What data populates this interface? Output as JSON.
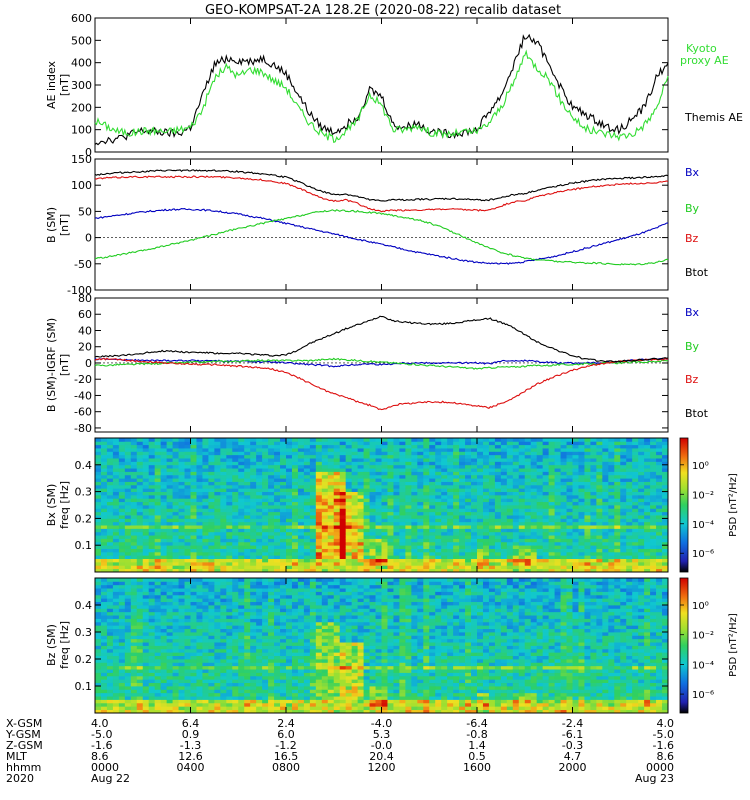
{
  "title": "GEO-KOMPSAT-2A 128.2E (2020-08-22) recalib dataset",
  "colors": {
    "black": "#000000",
    "blue": "#0000c0",
    "green": "#22cc22",
    "red": "#dd1111",
    "kyoto": "#33dd33"
  },
  "chart_data": [
    {
      "type": "line",
      "ylabel": [
        "AE index",
        "[nT]"
      ],
      "ylim": [
        0,
        600
      ],
      "yticks": [
        "0",
        "100",
        "200",
        "300",
        "400",
        "500",
        "600"
      ],
      "x": [
        0,
        0.5,
        1,
        1.5,
        2,
        2.5,
        3,
        3.5,
        4,
        4.5,
        5,
        5.5,
        6,
        6.5,
        7,
        7.5,
        8,
        8.5,
        9,
        9.5,
        10,
        10.5,
        11,
        11.5,
        12,
        12.5,
        13,
        13.5,
        14,
        14.5,
        15,
        15.5,
        16,
        16.5,
        17,
        17.5,
        18,
        18.5,
        19,
        19.5,
        20,
        20.5,
        21,
        21.5,
        22,
        22.5,
        23,
        23.5,
        24
      ],
      "series": [
        {
          "name": "Themis AE",
          "color_key": "black",
          "values": [
            45,
            55,
            60,
            80,
            95,
            90,
            85,
            80,
            110,
            250,
            390,
            420,
            410,
            405,
            420,
            390,
            350,
            260,
            170,
            110,
            90,
            120,
            160,
            280,
            250,
            120,
            110,
            130,
            95,
            85,
            80,
            90,
            100,
            180,
            250,
            380,
            520,
            490,
            400,
            290,
            200,
            170,
            140,
            110,
            100,
            150,
            200,
            330,
            400
          ]
        },
        {
          "name": "Kyoto proxy AE",
          "color_key": "kyoto",
          "values": [
            140,
            115,
            90,
            85,
            95,
            95,
            90,
            100,
            110,
            190,
            330,
            380,
            340,
            370,
            360,
            320,
            290,
            200,
            130,
            80,
            60,
            90,
            140,
            260,
            210,
            100,
            100,
            120,
            90,
            80,
            80,
            90,
            90,
            130,
            200,
            300,
            440,
            380,
            330,
            230,
            160,
            105,
            90,
            80,
            70,
            80,
            120,
            190,
            340
          ]
        }
      ],
      "right_labels": [
        {
          "text": "Kyoto",
          "color_key": "kyoto"
        },
        {
          "text": "proxy AE",
          "color_key": "kyoto"
        },
        {
          "text": "Themis AE",
          "color_key": "black"
        }
      ]
    },
    {
      "type": "line",
      "ylabel": [
        "B (SM)",
        "[nT]"
      ],
      "ylim": [
        -100,
        150
      ],
      "yticks": [
        "-100",
        "-50",
        "0",
        "50",
        "100",
        "150"
      ],
      "x": [
        0,
        0.5,
        1,
        1.5,
        2,
        2.5,
        3,
        3.5,
        4,
        4.5,
        5,
        5.5,
        6,
        6.5,
        7,
        7.5,
        8,
        8.5,
        9,
        9.5,
        10,
        10.5,
        11,
        11.5,
        12,
        12.5,
        13,
        13.5,
        14,
        14.5,
        15,
        15.5,
        16,
        16.5,
        17,
        17.5,
        18,
        18.5,
        19,
        19.5,
        20,
        20.5,
        21,
        21.5,
        22,
        22.5,
        23,
        23.5,
        24
      ],
      "series": [
        {
          "name": "Bx",
          "color_key": "blue",
          "values": [
            37,
            40,
            43,
            46,
            49,
            51,
            53,
            54,
            54,
            53,
            51,
            48,
            45,
            41,
            37,
            32,
            27,
            22,
            17,
            12,
            7,
            2,
            -3,
            -8,
            -13,
            -18,
            -23,
            -28,
            -32,
            -36,
            -40,
            -44,
            -47,
            -49,
            -50,
            -49,
            -46,
            -42,
            -38,
            -33,
            -27,
            -21,
            -15,
            -9,
            -3,
            3,
            10,
            18,
            28
          ]
        },
        {
          "name": "By",
          "color_key": "green",
          "values": [
            -40,
            -37,
            -33,
            -29,
            -25,
            -20,
            -15,
            -10,
            -5,
            1,
            6,
            12,
            17,
            22,
            27,
            32,
            36,
            41,
            46,
            50,
            52,
            51,
            50,
            48,
            46,
            42,
            38,
            34,
            28,
            20,
            10,
            0,
            -10,
            -20,
            -28,
            -34,
            -39,
            -42,
            -44,
            -46,
            -47,
            -48,
            -49,
            -50,
            -51,
            -51,
            -50,
            -47,
            -42
          ]
        },
        {
          "name": "Bz",
          "color_key": "red",
          "values": [
            112,
            114,
            115,
            116,
            116,
            116,
            116,
            116,
            116,
            116,
            116,
            115,
            114,
            112,
            110,
            107,
            103,
            95,
            85,
            75,
            70,
            72,
            65,
            55,
            50,
            52,
            52,
            53,
            53,
            54,
            54,
            53,
            52,
            52,
            60,
            68,
            70,
            78,
            83,
            88,
            92,
            95,
            98,
            100,
            102,
            103,
            104,
            105,
            107
          ]
        },
        {
          "name": "Btot",
          "color_key": "black",
          "values": [
            120,
            122,
            124,
            125,
            126,
            127,
            128,
            128,
            128,
            128,
            128,
            127,
            126,
            124,
            122,
            119,
            115,
            107,
            97,
            88,
            82,
            83,
            78,
            72,
            70,
            72,
            72,
            73,
            73,
            74,
            74,
            73,
            72,
            72,
            76,
            82,
            84,
            90,
            95,
            100,
            104,
            107,
            110,
            112,
            113,
            114,
            115,
            116,
            118
          ]
        }
      ],
      "right_labels": [
        {
          "text": "Bx",
          "color_key": "blue"
        },
        {
          "text": "By",
          "color_key": "green"
        },
        {
          "text": "Bz",
          "color_key": "red"
        },
        {
          "text": "Btot",
          "color_key": "black"
        }
      ]
    },
    {
      "type": "line",
      "ylabel": [
        "B (SM)-IGRF (SM)",
        "[nT]"
      ],
      "ylim": [
        -85,
        80
      ],
      "yticks": [
        "-80",
        "-60",
        "-40",
        "-20",
        "0",
        "20",
        "40",
        "60",
        "80"
      ],
      "x": [
        0,
        0.5,
        1,
        1.5,
        2,
        2.5,
        3,
        3.5,
        4,
        4.5,
        5,
        5.5,
        6,
        6.5,
        7,
        7.5,
        8,
        8.5,
        9,
        9.5,
        10,
        10.5,
        11,
        11.5,
        12,
        12.5,
        13,
        13.5,
        14,
        14.5,
        15,
        15.5,
        16,
        16.5,
        17,
        17.5,
        18,
        18.5,
        19,
        19.5,
        20,
        20.5,
        21,
        21.5,
        22,
        22.5,
        23,
        23.5,
        24
      ],
      "series": [
        {
          "name": "Bx",
          "color_key": "blue",
          "values": [
            5,
            5,
            4,
            4,
            3,
            3,
            3,
            3,
            3,
            3,
            3,
            2,
            2,
            2,
            1,
            1,
            0,
            -1,
            -2,
            -3,
            -4,
            -3,
            -2,
            -1,
            -2,
            -1,
            0,
            0,
            0,
            0,
            0,
            0,
            0,
            -1,
            2,
            3,
            3,
            2,
            1,
            0,
            0,
            0,
            0,
            1,
            2,
            3,
            4,
            5,
            5
          ]
        },
        {
          "name": "By",
          "color_key": "green",
          "values": [
            -3,
            -3,
            -2,
            -2,
            -1,
            -1,
            0,
            0,
            1,
            1,
            2,
            2,
            2,
            3,
            3,
            3,
            3,
            3,
            3,
            4,
            5,
            4,
            3,
            2,
            1,
            0,
            -1,
            -2,
            -3,
            -4,
            -5,
            -6,
            -7,
            -6,
            -5,
            -5,
            -4,
            -3,
            -3,
            -2,
            -2,
            -1,
            -1,
            0,
            0,
            1,
            1,
            2,
            3
          ]
        },
        {
          "name": "Bz",
          "color_key": "red",
          "values": [
            4,
            5,
            4,
            3,
            2,
            1,
            0,
            -1,
            -1,
            -2,
            -2,
            -3,
            -4,
            -5,
            -6,
            -8,
            -12,
            -18,
            -25,
            -32,
            -38,
            -42,
            -48,
            -52,
            -58,
            -52,
            -50,
            -49,
            -48,
            -48,
            -49,
            -51,
            -53,
            -55,
            -50,
            -44,
            -35,
            -26,
            -20,
            -14,
            -9,
            -5,
            -2,
            0,
            2,
            3,
            4,
            4,
            5
          ]
        },
        {
          "name": "Btot",
          "color_key": "black",
          "values": [
            8,
            8,
            9,
            10,
            12,
            14,
            15,
            14,
            13,
            13,
            12,
            11,
            12,
            11,
            10,
            9,
            10,
            16,
            24,
            30,
            36,
            42,
            47,
            52,
            58,
            52,
            50,
            49,
            48,
            48,
            49,
            51,
            53,
            55,
            50,
            44,
            35,
            26,
            20,
            14,
            9,
            5,
            3,
            2,
            2,
            3,
            4,
            5,
            6
          ]
        }
      ],
      "right_labels": [
        {
          "text": "Bx",
          "color_key": "blue"
        },
        {
          "text": "By",
          "color_key": "green"
        },
        {
          "text": "Bz",
          "color_key": "red"
        },
        {
          "text": "Btot",
          "color_key": "black"
        }
      ]
    },
    {
      "type": "heatmap",
      "ylabel": [
        "Bx (SM)",
        "freq [Hz]"
      ],
      "ylim": [
        0,
        0.5
      ],
      "yticks": [
        "0.1",
        "0.2",
        "0.3",
        "0.4"
      ],
      "colorbar": {
        "label": "PSD [nT²/Hz]",
        "ticks": [
          "10⁰",
          "10⁻²",
          "10⁻⁴",
          "10⁻⁶"
        ]
      },
      "seed": 11,
      "bursts": [
        [
          9.2,
          10.5,
          0.05,
          0.38,
          2.2
        ],
        [
          10.3,
          11.3,
          0.05,
          0.3,
          2.0
        ],
        [
          11.4,
          12.3,
          0.02,
          0.12,
          1.2
        ],
        [
          16.0,
          16.5,
          0.02,
          0.1,
          1.0
        ],
        [
          17.6,
          18.5,
          0.02,
          0.1,
          1.0
        ],
        [
          0,
          24,
          0,
          0.05,
          1.6
        ],
        [
          0,
          24,
          0.16,
          0.175,
          1.0
        ]
      ]
    },
    {
      "type": "heatmap",
      "ylabel": [
        "Bz (SM)",
        "freq [Hz]"
      ],
      "ylim": [
        0,
        0.5
      ],
      "yticks": [
        "0.1",
        "0.2",
        "0.3",
        "0.4"
      ],
      "colorbar": {
        "label": "PSD [nT²/Hz]",
        "ticks": [
          "10⁰",
          "10⁻²",
          "10⁻⁴",
          "10⁻⁶"
        ]
      },
      "seed": 29,
      "bursts": [
        [
          9.2,
          10.3,
          0.05,
          0.34,
          1.2
        ],
        [
          10.3,
          11.3,
          0.05,
          0.26,
          1.6
        ],
        [
          11.4,
          12.3,
          0.02,
          0.1,
          1.0
        ],
        [
          16.0,
          16.5,
          0.02,
          0.08,
          0.9
        ],
        [
          17.6,
          18.4,
          0.02,
          0.08,
          0.9
        ],
        [
          0,
          24,
          0,
          0.05,
          1.5
        ],
        [
          0,
          24,
          0.16,
          0.175,
          1.0
        ]
      ]
    }
  ],
  "x_axis": {
    "xlim": [
      0,
      24
    ],
    "tick_hours": [
      0,
      4,
      8,
      12,
      16,
      20,
      24
    ],
    "row_labels": [
      "X-GSM",
      "Y-GSM",
      "Z-GSM",
      "MLT",
      "hhmm",
      "2020"
    ],
    "columns": [
      [
        "4.0",
        "-5.0",
        "-1.6",
        "8.6",
        "0000",
        "Aug 22"
      ],
      [
        "6.4",
        "0.9",
        "-1.3",
        "12.6",
        "0400",
        ""
      ],
      [
        "2.4",
        "6.0",
        "-1.2",
        "16.5",
        "0800",
        ""
      ],
      [
        "-4.0",
        "5.3",
        "-0.0",
        "20.4",
        "1200",
        ""
      ],
      [
        "-6.4",
        "-0.8",
        "1.4",
        "0.5",
        "1600",
        ""
      ],
      [
        "-2.4",
        "-6.1",
        "-0.3",
        "4.7",
        "2000",
        ""
      ],
      [
        "4.0",
        "-5.0",
        "-1.6",
        "8.6",
        "0000",
        "Aug 23"
      ]
    ]
  }
}
